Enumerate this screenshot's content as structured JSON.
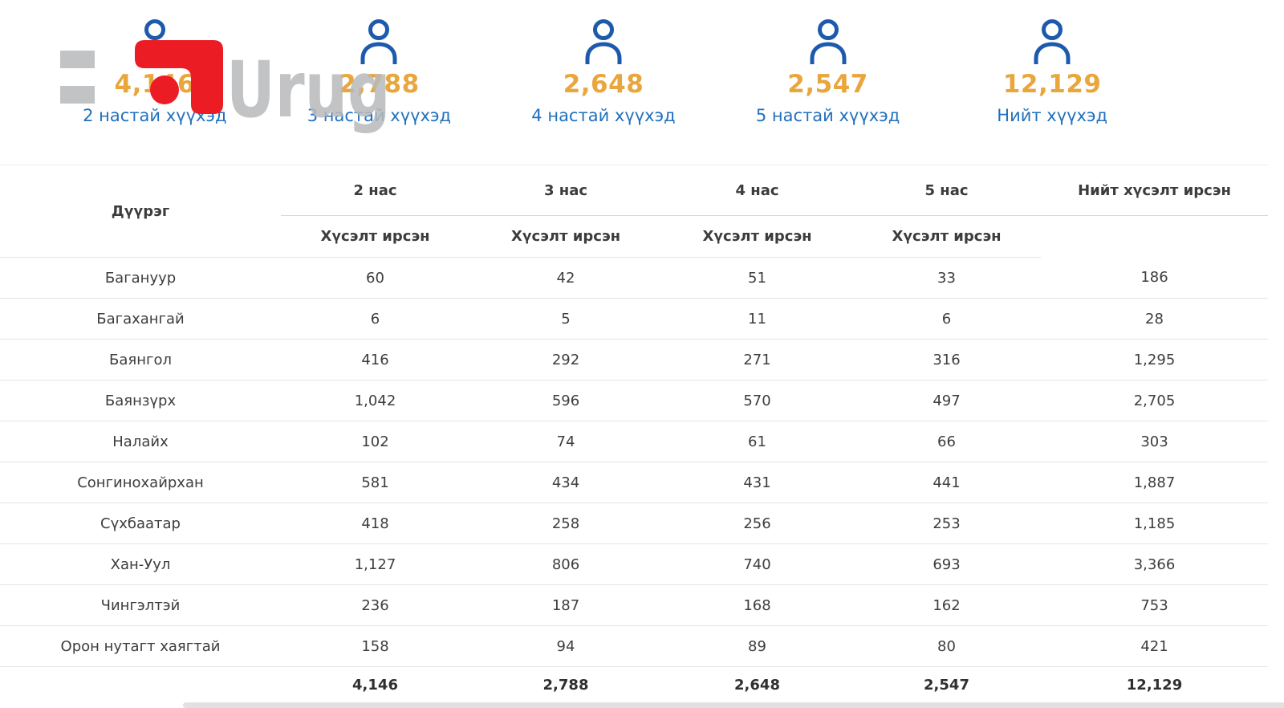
{
  "watermark": {
    "text": "Urug"
  },
  "colors": {
    "icon_blue": "#1E5AAC",
    "label_blue": "#2270BC",
    "value_orange": "#E9A63C",
    "logo_red": "#EC1C24",
    "logo_gray": "#B7B9BB"
  },
  "cards": [
    {
      "value": "4,146",
      "label": "2 настай хүүхэд"
    },
    {
      "value": "2,788",
      "label": "3 настай хүүхэд"
    },
    {
      "value": "2,648",
      "label": "4 настай хүүхэд"
    },
    {
      "value": "2,547",
      "label": "5 настай хүүхэд"
    },
    {
      "value": "12,129",
      "label": "Нийт хүүхэд"
    }
  ],
  "table": {
    "district_header": "Дүүрэг",
    "age_headers": [
      "2 нас",
      "3 нас",
      "4 нас",
      "5 нас"
    ],
    "sub_header": "Хүсэлт ирсэн",
    "total_header": "Нийт хүсэлт ирсэн",
    "rows": [
      {
        "district": "Багануур",
        "values": [
          "60",
          "42",
          "51",
          "33",
          "186"
        ]
      },
      {
        "district": "Багахангай",
        "values": [
          "6",
          "5",
          "11",
          "6",
          "28"
        ]
      },
      {
        "district": "Баянгол",
        "values": [
          "416",
          "292",
          "271",
          "316",
          "1,295"
        ]
      },
      {
        "district": "Баянзүрх",
        "values": [
          "1,042",
          "596",
          "570",
          "497",
          "2,705"
        ]
      },
      {
        "district": "Налайх",
        "values": [
          "102",
          "74",
          "61",
          "66",
          "303"
        ]
      },
      {
        "district": "Сонгинохайрхан",
        "values": [
          "581",
          "434",
          "431",
          "441",
          "1,887"
        ]
      },
      {
        "district": "Сүхбаатар",
        "values": [
          "418",
          "258",
          "256",
          "253",
          "1,185"
        ]
      },
      {
        "district": "Хан-Уул",
        "values": [
          "1,127",
          "806",
          "740",
          "693",
          "3,366"
        ]
      },
      {
        "district": "Чингэлтэй",
        "values": [
          "236",
          "187",
          "168",
          "162",
          "753"
        ]
      },
      {
        "district": "Орон нутагт хаягтай",
        "values": [
          "158",
          "94",
          "89",
          "80",
          "421"
        ]
      }
    ],
    "totals": [
      "4,146",
      "2,788",
      "2,648",
      "2,547",
      "12,129"
    ]
  }
}
